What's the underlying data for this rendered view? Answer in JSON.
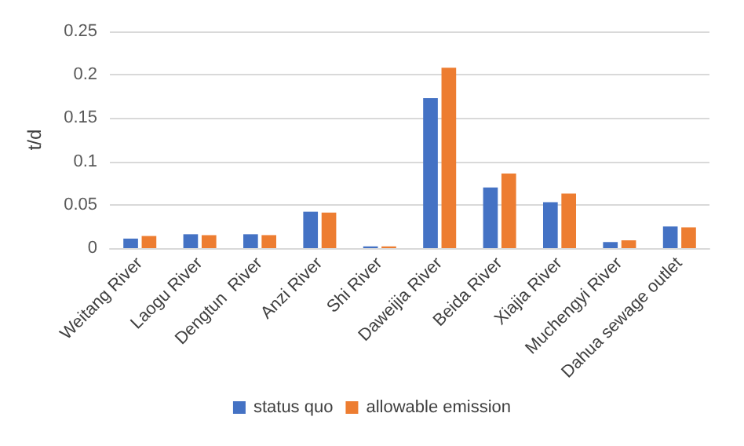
{
  "chart_data": {
    "type": "bar",
    "ylabel": "t/d",
    "categories": [
      "Weitang River",
      "Laogu River",
      "Dengtun  River",
      "Anzi River",
      "Shi River",
      "Daweijia River",
      "Beida River",
      "Xiajia River",
      "Muchengyi River",
      "Dahua sewage outlet"
    ],
    "series": [
      {
        "name": "status quo",
        "color": "#4472c4",
        "values": [
          0.011,
          0.016,
          0.016,
          0.042,
          0.002,
          0.173,
          0.07,
          0.053,
          0.007,
          0.025
        ]
      },
      {
        "name": "allowable emission",
        "color": "#ed7d31",
        "values": [
          0.014,
          0.015,
          0.015,
          0.041,
          0.002,
          0.208,
          0.086,
          0.063,
          0.009,
          0.024
        ]
      }
    ],
    "ylim": [
      0,
      0.25
    ],
    "yticks": [
      0,
      0.05,
      0.1,
      0.15,
      0.2,
      0.25
    ],
    "grid": "y",
    "legend": "bottom"
  }
}
